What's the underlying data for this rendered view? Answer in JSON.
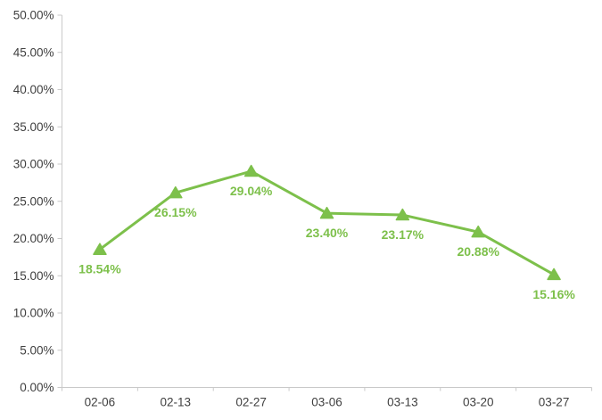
{
  "chart_data": {
    "type": "line",
    "title": "",
    "xlabel": "",
    "ylabel": "",
    "categories": [
      "02-06",
      "02-13",
      "02-27",
      "03-06",
      "03-13",
      "03-20",
      "03-27"
    ],
    "series": [
      {
        "name": "percentage-series",
        "values": [
          18.54,
          26.15,
          29.04,
          23.4,
          23.17,
          20.88,
          15.16
        ],
        "labels": [
          "18.54%",
          "26.15%",
          "29.04%",
          "23.40%",
          "23.17%",
          "20.88%",
          "15.16%"
        ]
      }
    ],
    "ylim": [
      0,
      50
    ],
    "y_ticks": [
      "0.00%",
      "5.00%",
      "10.00%",
      "15.00%",
      "20.00%",
      "25.00%",
      "30.00%",
      "35.00%",
      "40.00%",
      "45.00%",
      "50.00%"
    ],
    "grid": false,
    "legend_position": "none",
    "marker_shape": "triangle-up",
    "colors": {
      "line": "#7DC04B",
      "marker": "#7DC04B",
      "data_label": "#7DC04B",
      "axis_line": "#C9C9C9",
      "tick": "#C9C9C9",
      "axis_text": "#3F3F3F",
      "background": "#FFFFFF"
    }
  }
}
